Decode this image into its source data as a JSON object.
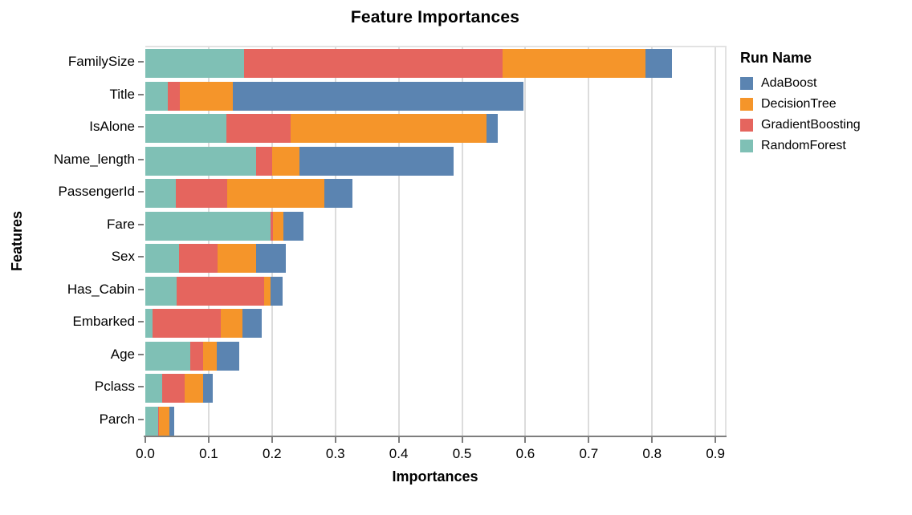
{
  "chart_data": {
    "type": "bar",
    "orientation": "horizontal",
    "stacked": true,
    "title": "Feature Importances",
    "xlabel": "Importances",
    "ylabel": "Features",
    "xlim": [
      0,
      0.915
    ],
    "xticks": [
      0.0,
      0.1,
      0.2,
      0.3,
      0.4,
      0.5,
      0.6,
      0.7,
      0.8,
      0.9
    ],
    "grid": true,
    "categories": [
      "FamilySize",
      "Title",
      "IsAlone",
      "Name_length",
      "PassengerId",
      "Fare",
      "Sex",
      "Has_Cabin",
      "Embarked",
      "Age",
      "Pclass",
      "Parch"
    ],
    "series": [
      {
        "name": "RandomForest",
        "color": "#7fc0b5",
        "values": [
          0.156,
          0.035,
          0.128,
          0.175,
          0.048,
          0.198,
          0.053,
          0.049,
          0.012,
          0.071,
          0.027,
          0.02
        ]
      },
      {
        "name": "GradientBoosting",
        "color": "#e5655e",
        "values": [
          0.408,
          0.019,
          0.101,
          0.025,
          0.081,
          0.003,
          0.061,
          0.139,
          0.107,
          0.02,
          0.035,
          0.002
        ]
      },
      {
        "name": "DecisionTree",
        "color": "#f5952a",
        "values": [
          0.226,
          0.084,
          0.31,
          0.043,
          0.154,
          0.017,
          0.061,
          0.01,
          0.034,
          0.022,
          0.029,
          0.016
        ]
      },
      {
        "name": "AdaBoost",
        "color": "#5b84b1",
        "values": [
          0.041,
          0.459,
          0.017,
          0.244,
          0.044,
          0.032,
          0.047,
          0.019,
          0.031,
          0.035,
          0.015,
          0.008
        ]
      }
    ],
    "legend": {
      "title": "Run Name",
      "position": "right",
      "items": [
        "AdaBoost",
        "DecisionTree",
        "GradientBoosting",
        "RandomForest"
      ]
    }
  }
}
